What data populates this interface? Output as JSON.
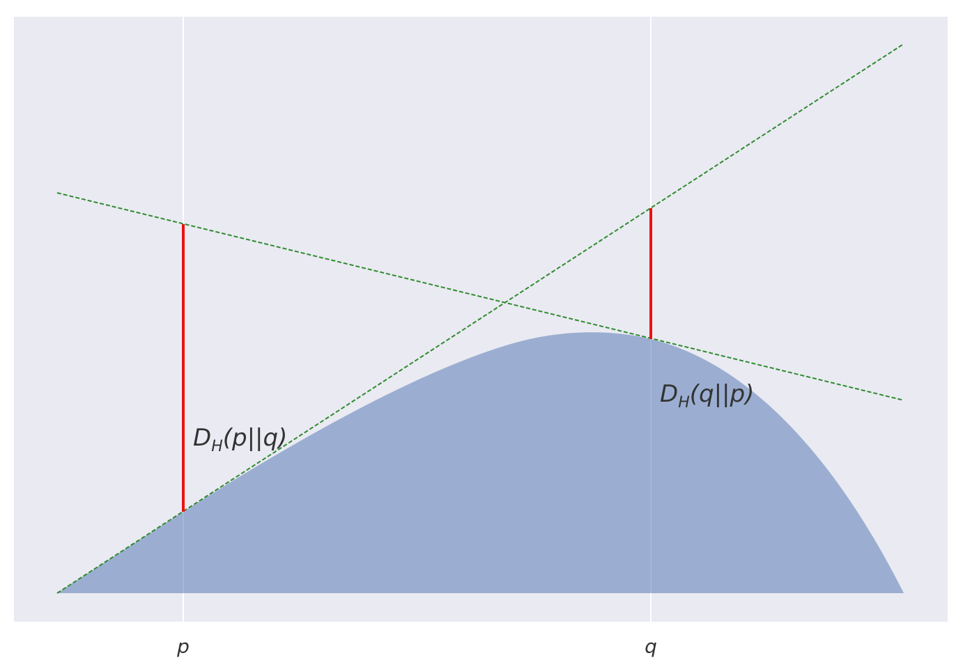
{
  "x_tick_labels": [
    "p",
    "q"
  ],
  "annotations": [
    {
      "symbol": "D",
      "subscript": "H",
      "argument": "(p||q)"
    },
    {
      "symbol": "D",
      "subscript": "H",
      "argument": "(q||p)"
    }
  ]
}
